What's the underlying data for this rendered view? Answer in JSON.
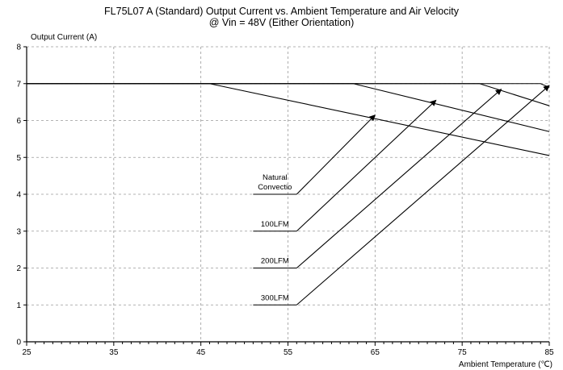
{
  "chart_data": {
    "type": "line",
    "title": "FL75L07 A (Standard) Output Current vs. Ambient Temperature and Air Velocity",
    "subtitle": "@ Vin = 48V (Either Orientation)",
    "ylabel": "Output Current (A)",
    "xlabel": "Ambient Temperature (℃)",
    "xlim": [
      25,
      85
    ],
    "ylim": [
      0,
      8
    ],
    "x_ticks": [
      25,
      35,
      45,
      55,
      65,
      75,
      85
    ],
    "y_ticks": [
      0,
      1,
      2,
      3,
      4,
      5,
      6,
      7,
      8
    ],
    "grid": true,
    "series": [
      {
        "name": "Natural Convectio",
        "x": [
          25,
          46,
          85
        ],
        "y": [
          7,
          7,
          5.05
        ]
      },
      {
        "name": "100LFM",
        "x": [
          25,
          62.5,
          85
        ],
        "y": [
          7,
          7,
          5.7
        ]
      },
      {
        "name": "200LFM",
        "x": [
          25,
          77,
          85
        ],
        "y": [
          7,
          7,
          6.4
        ]
      },
      {
        "name": "300LFM",
        "x": [
          25,
          84,
          85
        ],
        "y": [
          7,
          7,
          6.9
        ]
      }
    ],
    "annotations": [
      {
        "label": [
          "Natural",
          "Convectio"
        ],
        "x_from": 56,
        "y_from": 4,
        "x_to": 65,
        "y_to": 6.15
      },
      {
        "label": [
          "100LFM"
        ],
        "x_from": 56,
        "y_from": 3,
        "x_to": 72,
        "y_to": 6.55
      },
      {
        "label": [
          "200LFM"
        ],
        "x_from": 56,
        "y_from": 2,
        "x_to": 79.5,
        "y_to": 6.85
      },
      {
        "label": [
          "300LFM"
        ],
        "x_from": 56,
        "y_from": 1,
        "x_to": 85,
        "y_to": 6.95
      }
    ]
  }
}
